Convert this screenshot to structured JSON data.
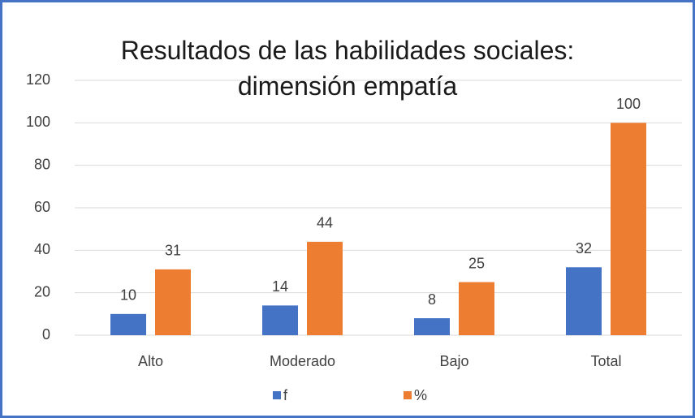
{
  "chart_data": {
    "type": "bar",
    "title": "Resultados de las habilidades sociales: dimensión empatía",
    "categories": [
      "Alto",
      "Moderado",
      "Bajo",
      "Total"
    ],
    "series": [
      {
        "name": "f",
        "color": "#4472c4",
        "values": [
          10,
          14,
          8,
          32
        ]
      },
      {
        "name": "%",
        "color": "#ed7d31",
        "values": [
          31,
          44,
          25,
          100
        ]
      }
    ],
    "ylim": [
      0,
      120
    ],
    "yticks": [
      0,
      20,
      40,
      60,
      80,
      100,
      120
    ],
    "grid": true,
    "legend": "bottom"
  }
}
